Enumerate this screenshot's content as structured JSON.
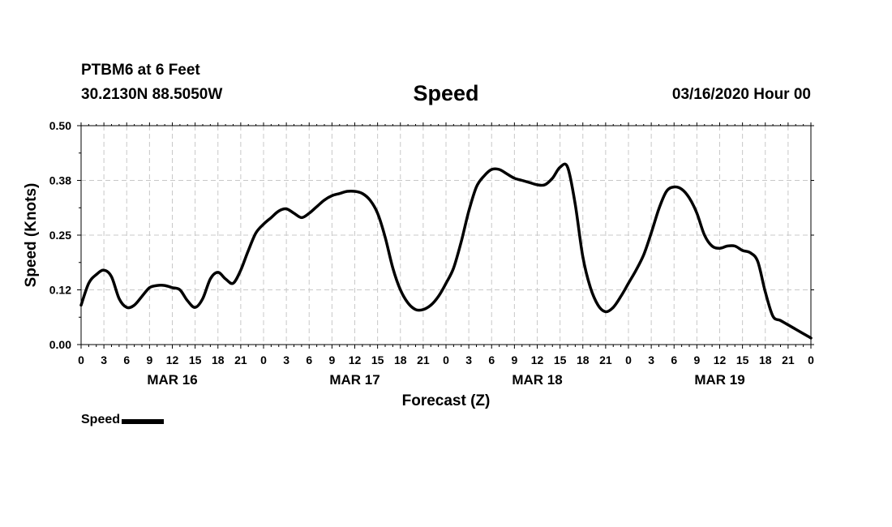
{
  "header": {
    "station": "PTBM6 at 6 Feet",
    "coords": "30.2130N 88.5050W",
    "title": "Speed",
    "datetime": "03/16/2020 Hour 00"
  },
  "chart_data": {
    "type": "line",
    "title": "Speed",
    "xlabel": "Forecast (Z)",
    "ylabel": "Speed (Knots)",
    "xlim": [
      0,
      96
    ],
    "ylim": [
      0,
      0.5
    ],
    "yticks": [
      0.0,
      0.125,
      0.25,
      0.375,
      0.5
    ],
    "ytick_labels": [
      "0.00",
      "0.12",
      "0.25",
      "0.38",
      "0.50"
    ],
    "xticks": [
      0,
      3,
      6,
      9,
      12,
      15,
      18,
      21,
      24,
      27,
      30,
      33,
      36,
      39,
      42,
      45,
      48,
      51,
      54,
      57,
      60,
      63,
      66,
      69,
      72,
      75,
      78,
      81,
      84,
      87,
      90,
      93,
      96
    ],
    "xtick_labels": [
      "0",
      "3",
      "6",
      "9",
      "12",
      "15",
      "18",
      "21",
      "0",
      "3",
      "6",
      "9",
      "12",
      "15",
      "18",
      "21",
      "0",
      "3",
      "6",
      "9",
      "12",
      "15",
      "18",
      "21",
      "0",
      "3",
      "6",
      "9",
      "12",
      "15",
      "18",
      "21",
      "0"
    ],
    "day_labels": [
      {
        "label": "MAR 16",
        "hour": 12
      },
      {
        "label": "MAR 17",
        "hour": 36
      },
      {
        "label": "MAR 18",
        "hour": 60
      },
      {
        "label": "MAR 19",
        "hour": 84
      }
    ],
    "grid": true,
    "legend": "bottom-left",
    "series": [
      {
        "name": "Speed",
        "color": "#000000",
        "x": [
          0,
          1,
          2,
          3,
          4,
          5,
          6,
          7,
          8,
          9,
          10,
          11,
          12,
          13,
          14,
          15,
          16,
          17,
          18,
          19,
          20,
          21,
          22,
          23,
          24,
          25,
          26,
          27,
          28,
          29,
          30,
          31,
          32,
          33,
          34,
          35,
          36,
          37,
          38,
          39,
          40,
          41,
          42,
          43,
          44,
          45,
          46,
          47,
          48,
          49,
          50,
          51,
          52,
          53,
          54,
          55,
          56,
          57,
          58,
          59,
          60,
          61,
          62,
          63,
          64,
          65,
          66,
          67,
          68,
          69,
          70,
          71,
          72,
          73,
          74,
          75,
          76,
          77,
          78,
          79,
          80,
          81,
          82,
          83,
          84,
          85,
          86,
          87,
          88,
          89,
          90,
          91,
          92,
          93,
          94,
          95,
          96
        ],
        "values": [
          0.09,
          0.14,
          0.16,
          0.17,
          0.155,
          0.105,
          0.085,
          0.09,
          0.11,
          0.13,
          0.135,
          0.135,
          0.13,
          0.125,
          0.1,
          0.085,
          0.105,
          0.15,
          0.165,
          0.15,
          0.14,
          0.17,
          0.215,
          0.255,
          0.275,
          0.29,
          0.305,
          0.31,
          0.3,
          0.29,
          0.3,
          0.315,
          0.33,
          0.34,
          0.345,
          0.35,
          0.35,
          0.345,
          0.33,
          0.3,
          0.245,
          0.175,
          0.125,
          0.095,
          0.08,
          0.08,
          0.09,
          0.11,
          0.14,
          0.175,
          0.235,
          0.305,
          0.36,
          0.385,
          0.4,
          0.4,
          0.39,
          0.38,
          0.375,
          0.37,
          0.365,
          0.365,
          0.38,
          0.405,
          0.405,
          0.32,
          0.2,
          0.13,
          0.09,
          0.075,
          0.085,
          0.11,
          0.14,
          0.17,
          0.205,
          0.255,
          0.31,
          0.35,
          0.36,
          0.355,
          0.335,
          0.3,
          0.25,
          0.225,
          0.22,
          0.225,
          0.225,
          0.215,
          0.21,
          0.19,
          0.12,
          0.065,
          0.055,
          0.045,
          0.035,
          0.025,
          0.015
        ]
      }
    ]
  },
  "legend": {
    "label": "Speed"
  }
}
